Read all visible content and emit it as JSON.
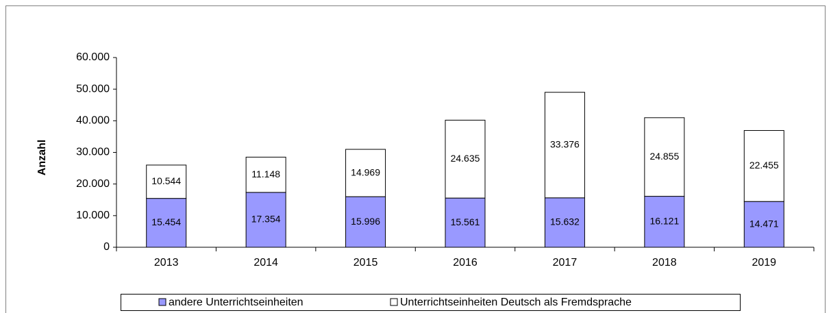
{
  "chart_data": {
    "type": "stacked_bar",
    "y_label": "Anzahl",
    "categories": [
      "2013",
      "2014",
      "2015",
      "2016",
      "2017",
      "2018",
      "2019"
    ],
    "series": [
      {
        "name": "andere Unterrichtseinheiten",
        "color": "#9999ff",
        "values": [
          15454,
          17354,
          15996,
          15561,
          15632,
          16121,
          14471
        ],
        "value_labels": [
          "15.454",
          "17.354",
          "15.996",
          "15.561",
          "15.632",
          "16.121",
          "14.471"
        ]
      },
      {
        "name": "Unterrichtseinheiten Deutsch als Fremdsprache",
        "color": "#ffffff",
        "values": [
          10544,
          11148,
          14969,
          24635,
          33376,
          24855,
          22455
        ],
        "value_labels": [
          "10.544",
          "11.148",
          "14.969",
          "24.635",
          "33.376",
          "24.855",
          "22.455"
        ]
      }
    ],
    "ylim": [
      0,
      60000
    ],
    "yticks": [
      0,
      {
        "value": 10000,
        "label": "10.000"
      },
      {
        "value": 20000,
        "label": "20.000"
      },
      {
        "value": 30000,
        "label": "30.000"
      },
      {
        "value": 40000,
        "label": "40.000"
      },
      {
        "value": 50000,
        "label": "50.000"
      },
      {
        "value": 60000,
        "label": "60.000"
      }
    ],
    "legend": "bottom"
  }
}
